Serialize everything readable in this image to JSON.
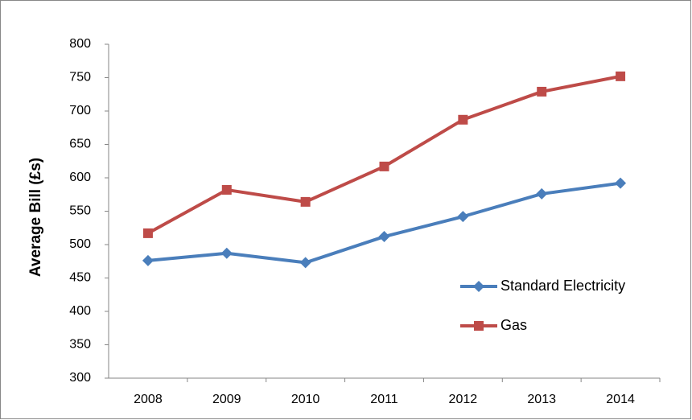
{
  "chart_data": {
    "type": "line",
    "y_label": "Average Bill (£s)",
    "categories": [
      "2008",
      "2009",
      "2010",
      "2011",
      "2012",
      "2013",
      "2014"
    ],
    "series": [
      {
        "name": "Standard Electricity",
        "color": "#4a7ebb",
        "marker": "diamond",
        "values": [
          476,
          487,
          473,
          512,
          542,
          576,
          592
        ]
      },
      {
        "name": "Gas",
        "color": "#be4b48",
        "marker": "square",
        "values": [
          517,
          582,
          564,
          617,
          687,
          729,
          752
        ]
      }
    ],
    "ylim": [
      300,
      800
    ],
    "yticks": [
      300,
      350,
      400,
      450,
      500,
      550,
      600,
      650,
      700,
      750,
      800
    ],
    "grid": false,
    "legend": "right"
  }
}
